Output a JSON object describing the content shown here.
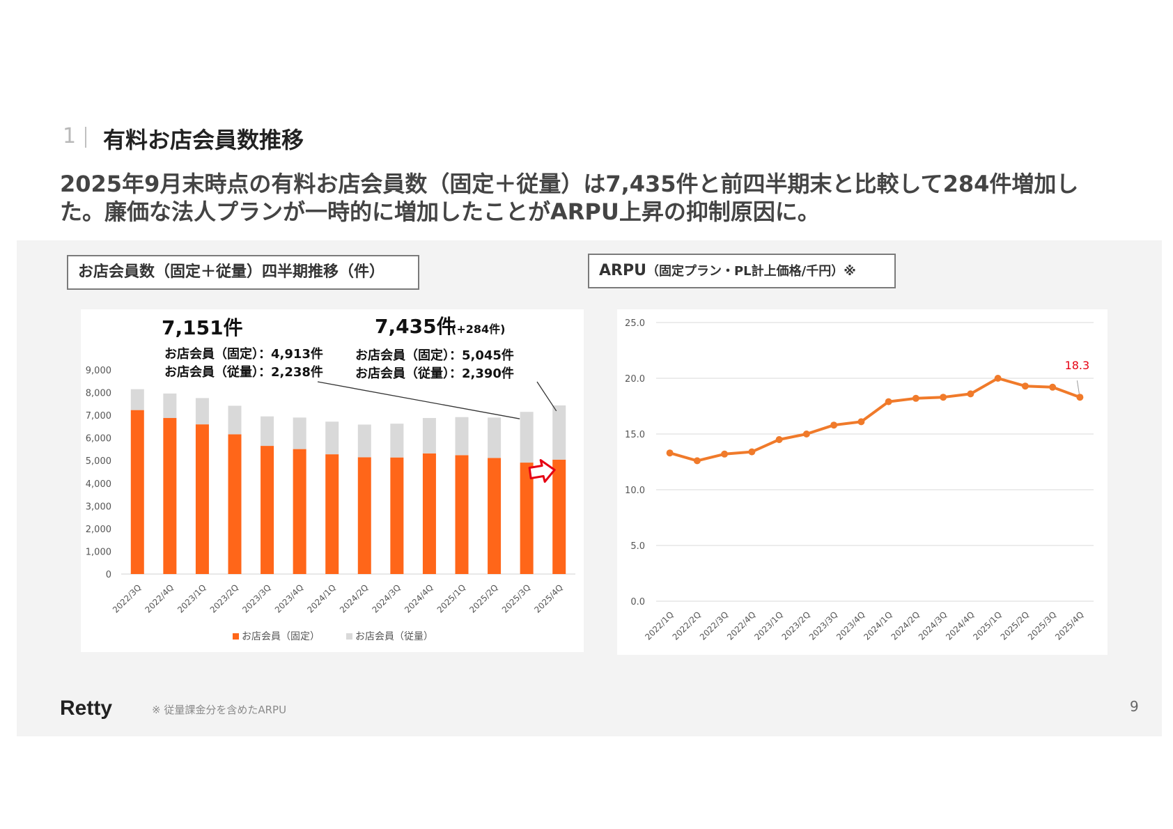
{
  "header": {
    "section_number": "1",
    "section_title": "有料お店会員数推移",
    "headline": "2025年9月末時点の有料お店会員数（固定＋従量）は7,435件と前四半期末と比較して284件増加した。廉価な法人プランが一時的に増加したことがARPU上昇の抑制原因に。"
  },
  "left_panel": {
    "label": "お店会員数（固定＋従量）四半期推移（件）",
    "annotations": {
      "prev_total": "7,151件",
      "prev_fixed": "お店会員（固定）：4,913件",
      "prev_metered": "お店会員（従量）：2,238件",
      "curr_total": "7,435件",
      "curr_change": "(+284件)",
      "curr_fixed": "お店会員（固定）：5,045件",
      "curr_metered": "お店会員（従量）：2,390件"
    }
  },
  "right_panel": {
    "label_main": "ARPU",
    "label_sub": "（固定プラン・PL計上価格/千円）※"
  },
  "chart_data": [
    {
      "type": "bar",
      "stacked": true,
      "categories": [
        "2022/3Q",
        "2022/4Q",
        "2023/1Q",
        "2023/2Q",
        "2023/3Q",
        "2023/4Q",
        "2024/1Q",
        "2024/2Q",
        "2024/3Q",
        "2024/4Q",
        "2025/1Q",
        "2025/2Q",
        "2025/3Q",
        "2025/4Q"
      ],
      "series": [
        {
          "name": "お店会員（固定）",
          "color": "#ff6619",
          "values": [
            7230,
            6880,
            6600,
            6160,
            5650,
            5510,
            5280,
            5150,
            5140,
            5320,
            5240,
            5120,
            4913,
            5045
          ]
        },
        {
          "name": "お店会員（従量）",
          "color": "#d9d9d9",
          "values": [
            920,
            1080,
            1160,
            1260,
            1300,
            1390,
            1440,
            1440,
            1490,
            1560,
            1680,
            1780,
            2238,
            2390
          ]
        }
      ],
      "ylim": [
        0,
        9000
      ],
      "yticks": [
        "0",
        "1,000",
        "2,000",
        "3,000",
        "4,000",
        "5,000",
        "6,000",
        "7,000",
        "8,000",
        "9,000"
      ],
      "grid": false,
      "legend": "bottom"
    },
    {
      "type": "line",
      "categories": [
        "2022/1Q",
        "2022/2Q",
        "2022/3Q",
        "2022/4Q",
        "2023/1Q",
        "2023/2Q",
        "2023/3Q",
        "2023/4Q",
        "2024/1Q",
        "2024/2Q",
        "2024/3Q",
        "2024/4Q",
        "2025/1Q",
        "2025/2Q",
        "2025/3Q",
        "2025/4Q"
      ],
      "series": [
        {
          "color": "#f07a2a",
          "values": [
            13.3,
            12.6,
            13.2,
            13.4,
            14.5,
            15.0,
            15.8,
            16.1,
            17.9,
            18.2,
            18.3,
            18.6,
            20.0,
            19.3,
            19.2,
            18.3
          ]
        }
      ],
      "ylim": [
        0,
        25
      ],
      "yticks": [
        "0.0",
        "5.0",
        "10.0",
        "15.0",
        "20.0",
        "25.0"
      ],
      "grid": true,
      "data_label": {
        "value": "18.3",
        "color": "#e60012"
      }
    }
  ],
  "footer": {
    "logo": "Retty",
    "footnote": "※ 従量課金分を含めたARPU",
    "page_number": "9"
  }
}
